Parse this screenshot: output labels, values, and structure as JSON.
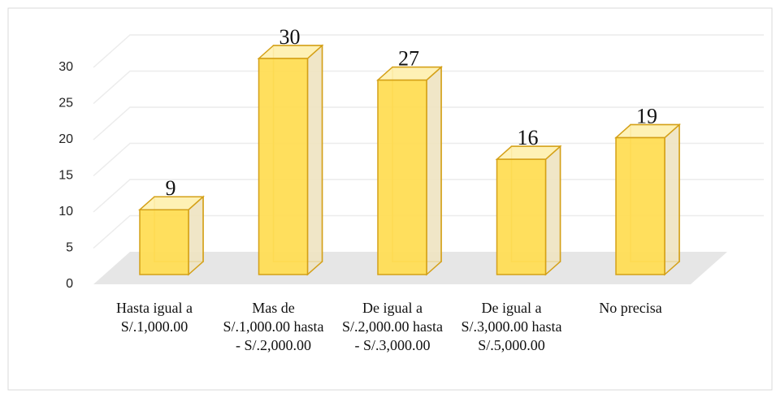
{
  "chart_data": {
    "type": "bar3d",
    "categories": [
      "Hasta igual a S/.1,000.00",
      "Mas de S/.1,000.00 hasta - S/.2,000.00",
      "De igual a S/.2,000.00 hasta - S/.3,000.00",
      "De igual a S/.3,000.00 hasta S/.5,000.00",
      "No precisa"
    ],
    "values": [
      9,
      30,
      27,
      16,
      19
    ],
    "color": "#ffdd55",
    "ylim": [
      0,
      30
    ],
    "yticks": [
      0,
      5,
      10,
      15,
      20,
      25,
      30
    ],
    "grid": true
  }
}
